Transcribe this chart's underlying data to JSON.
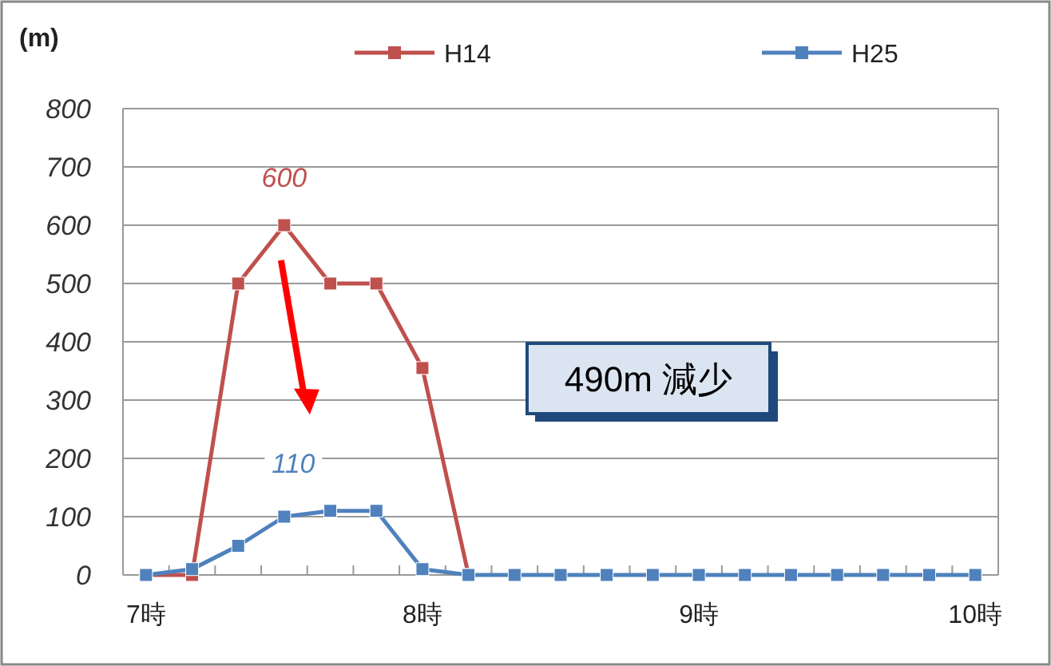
{
  "chart_data": {
    "type": "line",
    "ylabel": "(m)",
    "categories": [
      "7時",
      null,
      null,
      null,
      null,
      null,
      "8時",
      null,
      null,
      null,
      null,
      null,
      "9時",
      null,
      null,
      null,
      null,
      null,
      "10時"
    ],
    "series": [
      {
        "name": "H14",
        "color": "#c0504d",
        "values": [
          0,
          0,
          500,
          600,
          500,
          500,
          355,
          0,
          null,
          null,
          null,
          null,
          null,
          null,
          null,
          null,
          null,
          null,
          null
        ]
      },
      {
        "name": "H25",
        "color": "#4f81bd",
        "values": [
          0,
          10,
          50,
          100,
          110,
          110,
          10,
          0,
          0,
          0,
          0,
          0,
          0,
          0,
          0,
          0,
          0,
          0,
          0
        ]
      }
    ],
    "ylim": [
      0,
      800
    ],
    "yticks": [
      0,
      100,
      200,
      300,
      400,
      500,
      600,
      700,
      800
    ],
    "grid": "y",
    "legend": "top",
    "marker": "square",
    "line_style": "solid",
    "annotations": [
      "600",
      "110",
      "490m 減少"
    ]
  }
}
